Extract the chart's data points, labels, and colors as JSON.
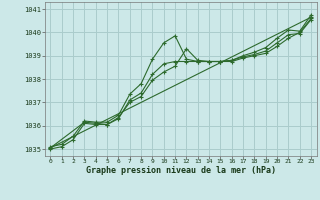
{
  "title": "Graphe pression niveau de la mer (hPa)",
  "bg_color": "#cce8e8",
  "grid_color": "#aacccc",
  "line_color": "#2d6a2d",
  "xlim": [
    -0.5,
    23.5
  ],
  "ylim": [
    1034.7,
    1041.3
  ],
  "yticks": [
    1035,
    1036,
    1037,
    1038,
    1039,
    1040,
    1041
  ],
  "xticks": [
    0,
    1,
    2,
    3,
    4,
    5,
    6,
    7,
    8,
    9,
    10,
    11,
    12,
    13,
    14,
    15,
    16,
    17,
    18,
    19,
    20,
    21,
    22,
    23
  ],
  "line1_x": [
    0,
    1,
    2,
    3,
    4,
    5,
    6,
    7,
    8,
    9,
    10,
    11,
    12,
    13,
    14,
    15,
    16,
    17,
    18,
    19,
    20,
    21,
    22,
    23
  ],
  "line1_y": [
    1035.1,
    1035.2,
    1035.55,
    1036.2,
    1036.15,
    1036.15,
    1036.45,
    1037.35,
    1037.8,
    1038.85,
    1039.55,
    1039.85,
    1038.85,
    1038.75,
    1038.75,
    1038.75,
    1038.8,
    1039.0,
    1039.15,
    1039.35,
    1039.75,
    1040.1,
    1040.05,
    1040.75
  ],
  "line2_x": [
    0,
    1,
    2,
    3,
    4,
    5,
    6,
    7,
    8,
    9,
    10,
    11,
    12,
    13,
    14,
    15,
    16,
    17,
    18,
    19,
    20,
    21,
    22,
    23
  ],
  "line2_y": [
    1035.0,
    1035.1,
    1035.4,
    1036.1,
    1036.05,
    1036.05,
    1036.3,
    1037.1,
    1037.4,
    1038.2,
    1038.65,
    1038.75,
    1038.75,
    1038.75,
    1038.75,
    1038.75,
    1038.8,
    1038.95,
    1039.05,
    1039.2,
    1039.55,
    1039.9,
    1039.95,
    1040.55
  ],
  "line3_x": [
    0,
    3,
    4,
    5,
    6,
    7,
    8,
    9,
    10,
    11,
    12,
    13,
    14,
    15,
    16,
    17,
    18,
    19,
    20,
    21,
    22,
    23
  ],
  "line3_y": [
    1035.05,
    1036.15,
    1036.1,
    1036.05,
    1036.35,
    1037.0,
    1037.25,
    1037.95,
    1038.3,
    1038.55,
    1039.3,
    1038.8,
    1038.75,
    1038.75,
    1038.75,
    1038.9,
    1039.0,
    1039.1,
    1039.4,
    1039.75,
    1040.0,
    1040.6
  ],
  "line4_x": [
    0,
    23
  ],
  "line4_y": [
    1035.05,
    1040.65
  ]
}
